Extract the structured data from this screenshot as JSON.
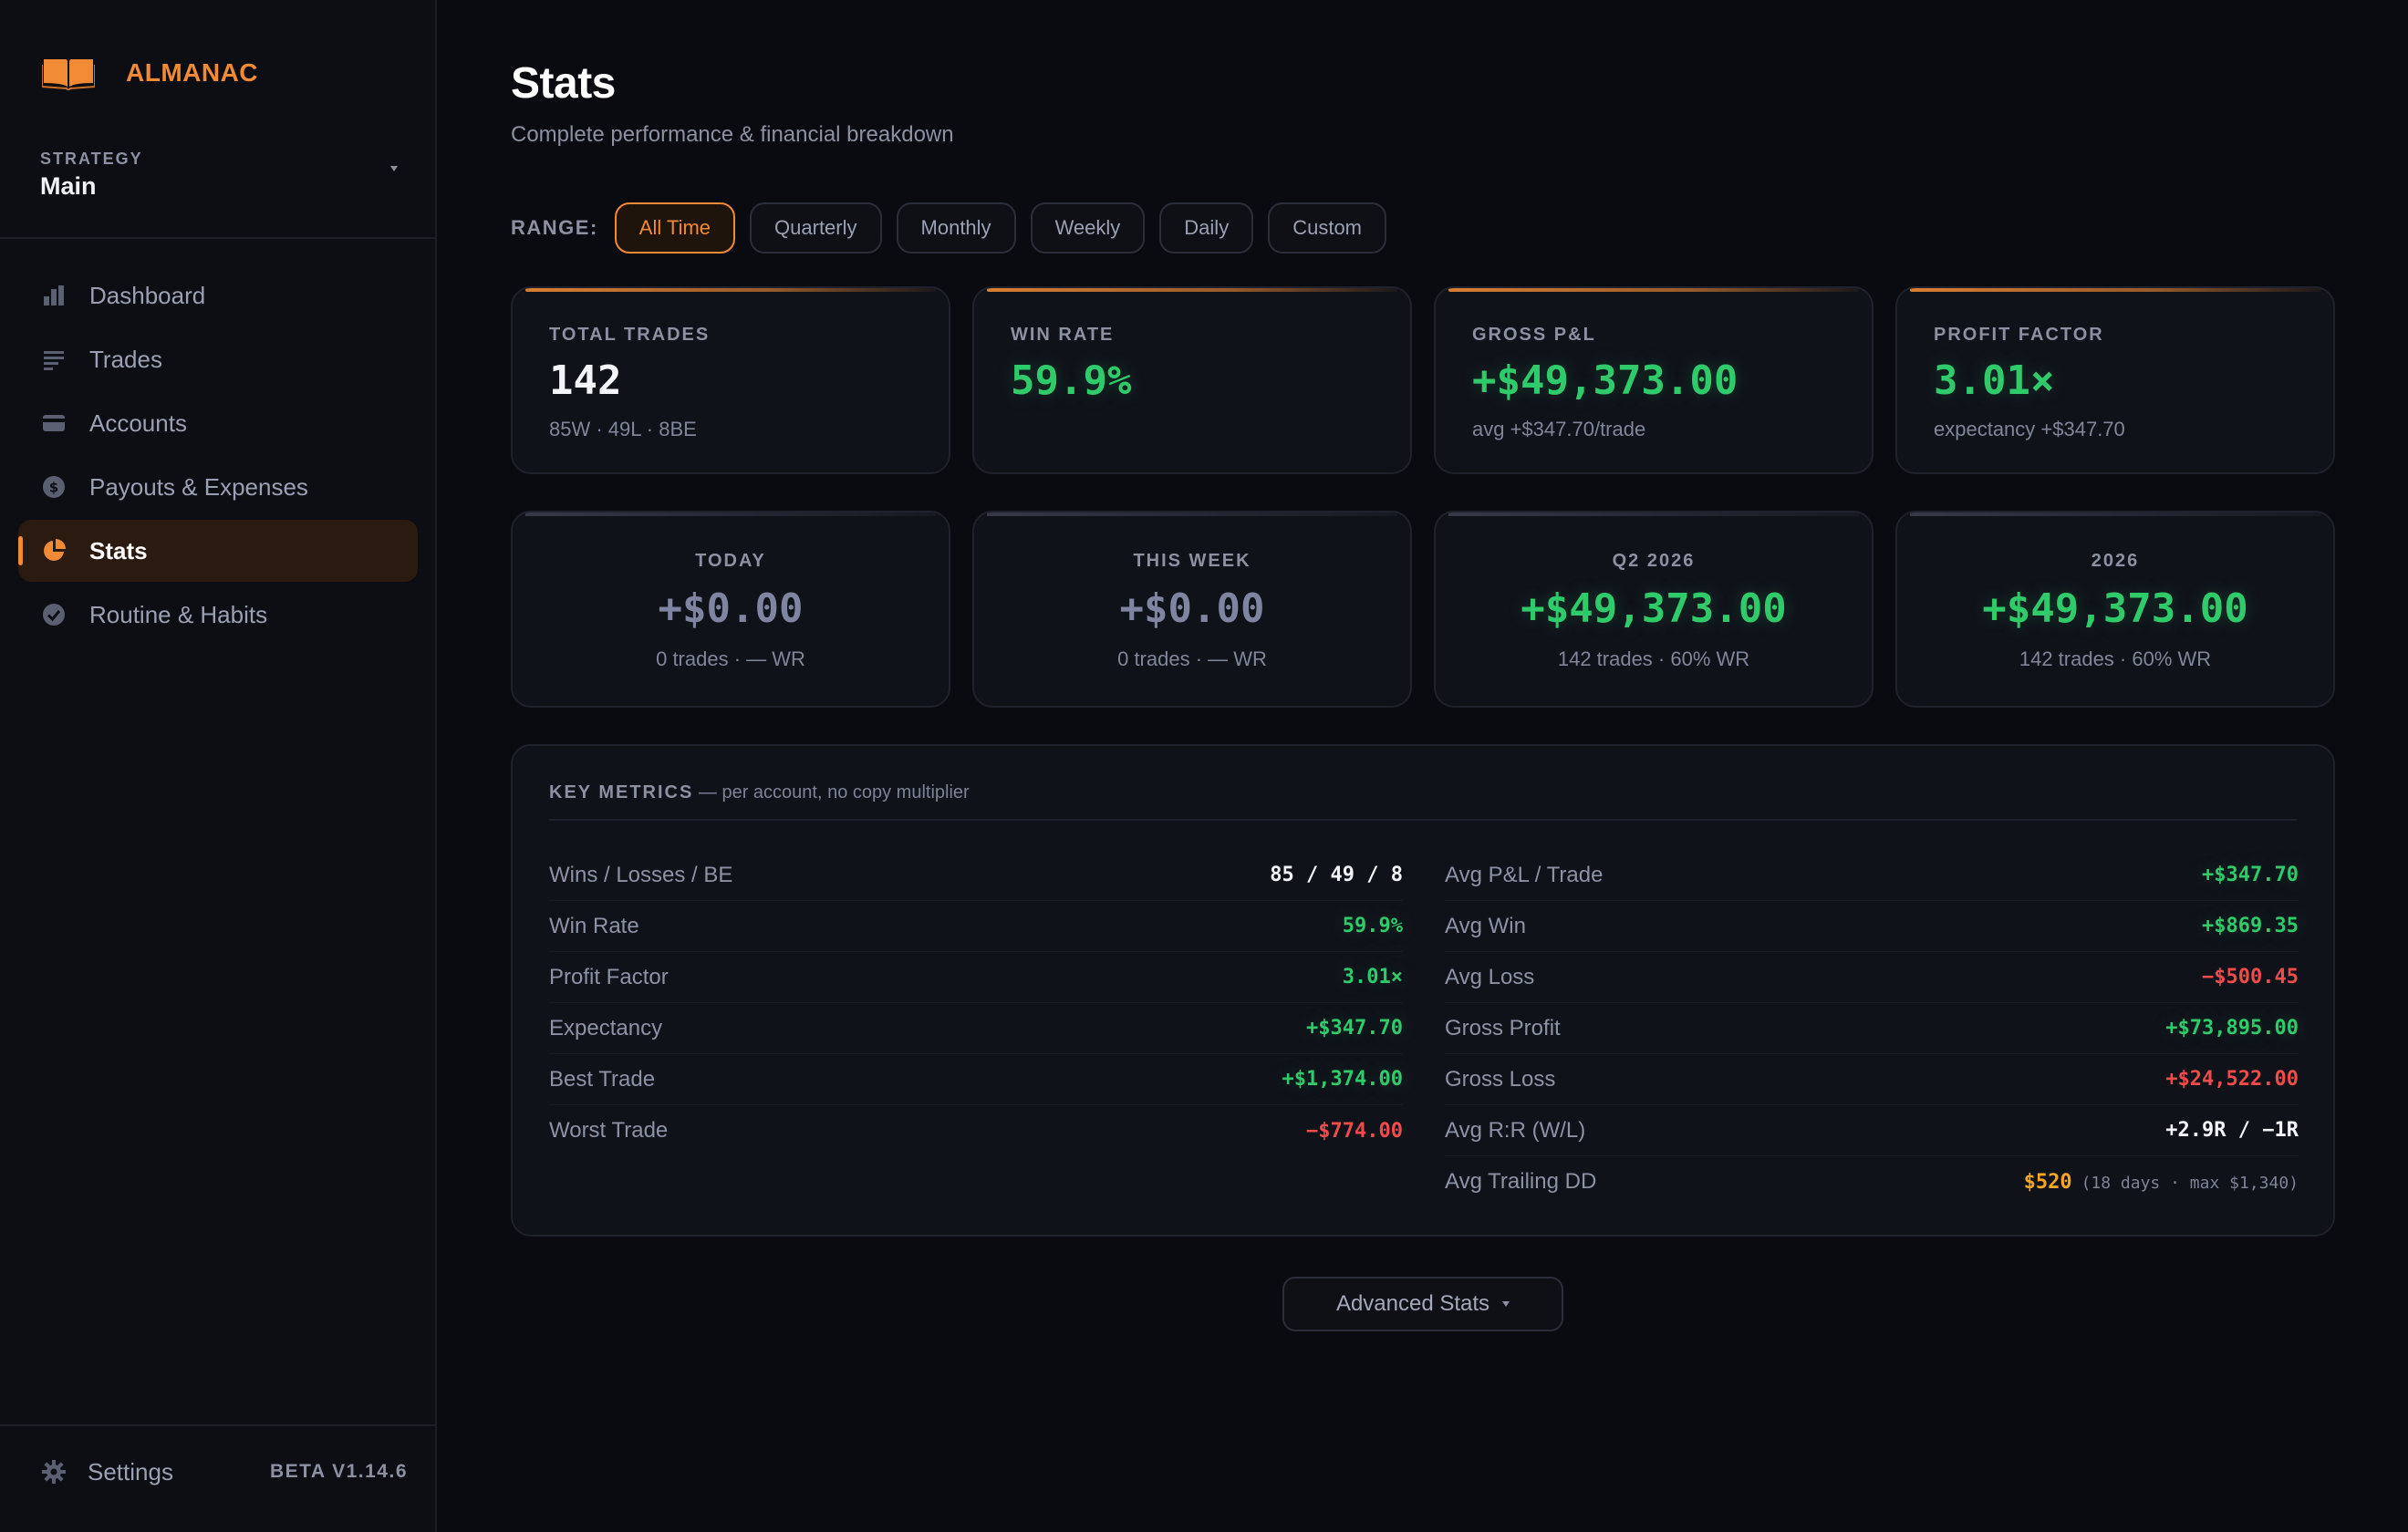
{
  "brand": {
    "name": "ALMANAC",
    "accent": "#f08a34"
  },
  "strategy": {
    "label": "STRATEGY",
    "value": "Main"
  },
  "nav": {
    "items": [
      {
        "label": "Dashboard",
        "icon": "bar-chart-icon"
      },
      {
        "label": "Trades",
        "icon": "list-icon"
      },
      {
        "label": "Accounts",
        "icon": "card-icon"
      },
      {
        "label": "Payouts & Expenses",
        "icon": "dollar-circle-icon"
      },
      {
        "label": "Stats",
        "icon": "pie-chart-icon",
        "active": true
      },
      {
        "label": "Routine & Habits",
        "icon": "check-circle-icon"
      }
    ],
    "settings": "Settings",
    "version": "BETA V1.14.6"
  },
  "page": {
    "title": "Stats",
    "subtitle": "Complete performance & financial breakdown"
  },
  "range": {
    "label": "RANGE:",
    "options": [
      "All Time",
      "Quarterly",
      "Monthly",
      "Weekly",
      "Daily",
      "Custom"
    ],
    "selected": "All Time"
  },
  "summary": [
    {
      "label": "TOTAL TRADES",
      "value": "142",
      "sub": "85W · 49L · 8BE"
    },
    {
      "label": "WIN RATE",
      "value": "59.9%",
      "sub": ""
    },
    {
      "label": "GROSS P&L",
      "value": "+$49,373.00",
      "sub": "avg +$347.70/trade"
    },
    {
      "label": "PROFIT FACTOR",
      "value": "3.01×",
      "sub": "expectancy +$347.70"
    }
  ],
  "periods": [
    {
      "label": "TODAY",
      "value": "+$0.00",
      "sub": "0 trades · — WR"
    },
    {
      "label": "THIS WEEK",
      "value": "+$0.00",
      "sub": "0 trades · — WR"
    },
    {
      "label": "Q2 2026",
      "value": "+$49,373.00",
      "sub": "142 trades · 60% WR"
    },
    {
      "label": "2026",
      "value": "+$49,373.00",
      "sub": "142 trades · 60% WR"
    }
  ],
  "key_metrics": {
    "title": "KEY METRICS",
    "note": "— per account, no copy multiplier",
    "left": [
      {
        "k": "Wins / Losses / BE",
        "v": "85 / 49 / 8"
      },
      {
        "k": "Win Rate",
        "v": "59.9%"
      },
      {
        "k": "Profit Factor",
        "v": "3.01×"
      },
      {
        "k": "Expectancy",
        "v": "+$347.70"
      },
      {
        "k": "Best Trade",
        "v": "+$1,374.00"
      },
      {
        "k": "Worst Trade",
        "v": "−$774.00"
      }
    ],
    "right": [
      {
        "k": "Avg P&L / Trade",
        "v": "+$347.70"
      },
      {
        "k": "Avg Win",
        "v": "+$869.35"
      },
      {
        "k": "Avg Loss",
        "v": "−$500.45"
      },
      {
        "k": "Gross Profit",
        "v": "+$73,895.00"
      },
      {
        "k": "Gross Loss",
        "v": "+$24,522.00"
      },
      {
        "k": "Avg R:R (W/L)",
        "v": "+2.9R / −1R"
      },
      {
        "k": "Avg Trailing DD",
        "v": "$520",
        "extra": "(18 days · max $1,340)"
      }
    ]
  },
  "advanced": {
    "label": "Advanced Stats"
  },
  "colors": {
    "green": "#2fcb6b",
    "red": "#f04b4b",
    "orange": "#f5a623",
    "muted": "#7f85a0"
  }
}
